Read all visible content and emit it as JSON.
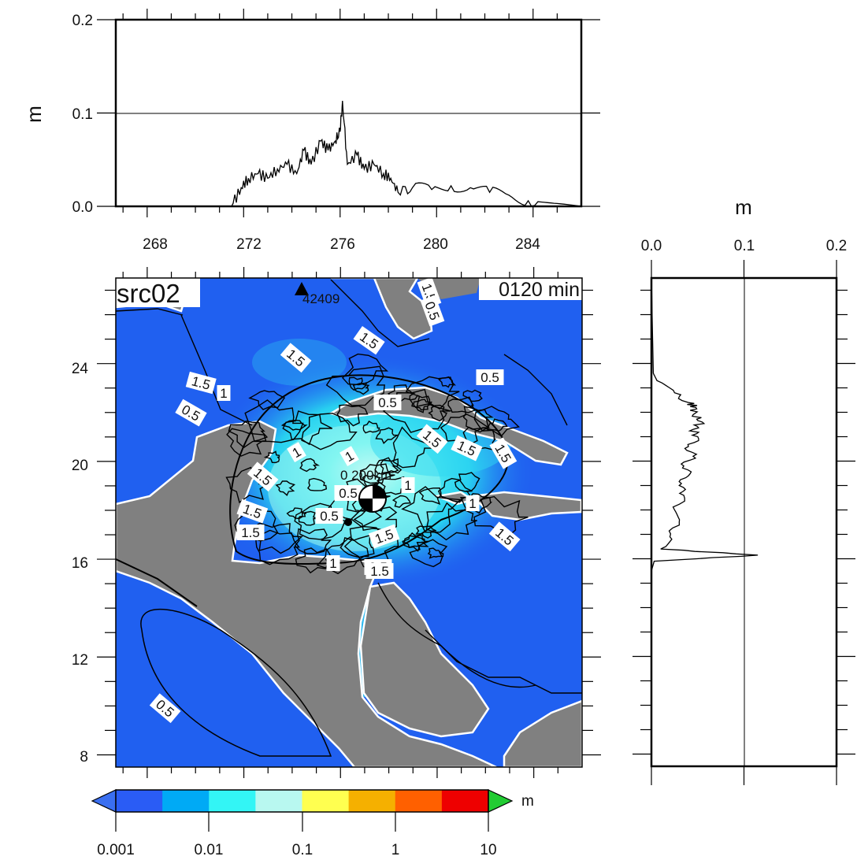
{
  "top_panel": {
    "y_unit": "m",
    "y_ticks": [
      "0.0",
      "0.1",
      "0.2"
    ],
    "x_ticks": [
      "268",
      "272",
      "276",
      "280",
      "284"
    ],
    "x_range": [
      266.7,
      286.0
    ],
    "y_range": [
      0,
      0.2
    ],
    "reference_line": 0.1
  },
  "right_panel": {
    "x_unit": "m",
    "x_ticks": [
      "0.0",
      "0.1",
      "0.2"
    ],
    "x_range": [
      0,
      0.2
    ],
    "y_range": [
      7.5,
      27.5
    ],
    "reference_line": 0.1
  },
  "map": {
    "source_label": "src02",
    "time_label": "0120 min",
    "station_label": "42409",
    "lat_ticks": [
      "8",
      "12",
      "16",
      "20",
      "24"
    ],
    "lon_range": [
      266.7,
      286.0
    ],
    "lat_range": [
      7.5,
      27.5
    ],
    "scale_label": "0      200km",
    "contour_labels": [
      "1.5",
      "1.5",
      "1.5",
      "1.5",
      "0.5",
      "1.5",
      "1",
      "0.5",
      "0.5",
      "1.5",
      "1.5",
      "1",
      "1",
      "1.5",
      "0.5",
      "1",
      "1.5",
      "1.5",
      "0.5",
      "1",
      "1.5",
      "1.5",
      "1",
      "0.5",
      "1.5",
      "0.5",
      "0.5"
    ],
    "colors": {
      "ocean": "#2060f0",
      "land": "#808080",
      "cyan": "#30f0f0",
      "coast": "#ffffff",
      "contour": "#000000"
    }
  },
  "colorbar": {
    "unit": "m",
    "tick_labels": [
      "0.001",
      "0.01",
      "0.1",
      "1",
      "10"
    ],
    "colors": [
      "#2a5cf5",
      "#00aaf5",
      "#33f5f5",
      "#b8f8f0",
      "#ffff50",
      "#f5b000",
      "#ff6000",
      "#ee0000"
    ],
    "under_color": "#3a6ff0",
    "over_color": "#22cc33"
  },
  "chart_data": [
    {
      "type": "line",
      "xlabel": "",
      "ylabel": "m",
      "xlim": [
        266.7,
        286.0
      ],
      "ylim": [
        0,
        0.2
      ],
      "x": [
        266.7,
        271.5,
        271.9,
        272.2,
        272.6,
        273.0,
        273.4,
        273.8,
        274.2,
        274.5,
        274.8,
        275.2,
        275.5,
        275.8,
        276.0,
        276.1,
        276.3,
        276.7,
        277.0,
        277.4,
        277.8,
        278.1,
        278.4,
        279.0,
        279.8,
        280.6,
        281.4,
        282.2,
        283.0,
        283.8,
        284.6,
        285.4,
        286.0
      ],
      "y": [
        0.0,
        0.0,
        0.02,
        0.03,
        0.035,
        0.03,
        0.04,
        0.045,
        0.035,
        0.06,
        0.045,
        0.07,
        0.06,
        0.07,
        0.08,
        0.113,
        0.045,
        0.055,
        0.04,
        0.045,
        0.035,
        0.03,
        0.015,
        0.02,
        0.018,
        0.022,
        0.02,
        0.015,
        0.012,
        0.006,
        0.004,
        0.002,
        0.0
      ]
    },
    {
      "type": "line",
      "xlabel": "m",
      "ylabel": "",
      "xlim": [
        0,
        0.2
      ],
      "ylim": [
        7.5,
        27.5
      ],
      "x": [
        0.0,
        0.0,
        0.003,
        0.115,
        0.01,
        0.02,
        0.03,
        0.025,
        0.035,
        0.03,
        0.04,
        0.035,
        0.045,
        0.04,
        0.05,
        0.045,
        0.055,
        0.045,
        0.048,
        0.04,
        0.025,
        0.006,
        0.002,
        0.0
      ],
      "y": [
        7.5,
        15.5,
        15.9,
        16.15,
        16.4,
        16.9,
        17.5,
        18.0,
        18.6,
        19.0,
        19.4,
        19.8,
        20.2,
        20.6,
        21.0,
        21.3,
        21.6,
        21.9,
        22.2,
        22.4,
        22.8,
        23.3,
        23.6,
        27.5
      ]
    }
  ]
}
